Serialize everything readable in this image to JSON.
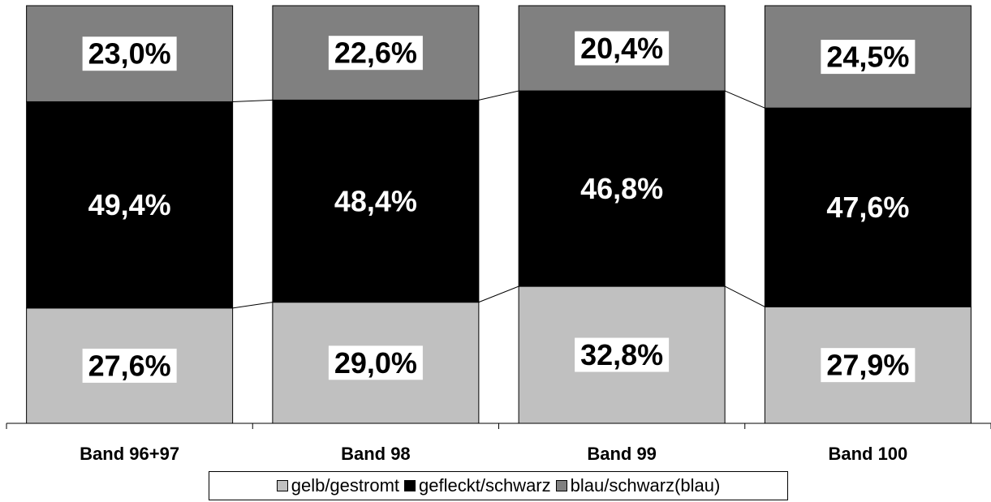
{
  "chart_data": {
    "type": "bar",
    "stacked": true,
    "percent_stacked": true,
    "categories": [
      "Band 96+97",
      "Band 98",
      "Band 99",
      "Band 100"
    ],
    "series": [
      {
        "name": "gelb/gestromt",
        "values": [
          27.6,
          29.0,
          32.8,
          27.9
        ],
        "labels": [
          "27,6%",
          "29,0%",
          "32,8%",
          "27,9%"
        ],
        "color": "#c0c0c0",
        "label_color": "#000000",
        "label_bg": "#ffffff"
      },
      {
        "name": "gefleckt/schwarz",
        "values": [
          49.4,
          48.4,
          46.8,
          47.6
        ],
        "labels": [
          "49,4%",
          "48,4%",
          "46,8%",
          "47,6%"
        ],
        "color": "#000000",
        "label_color": "#ffffff",
        "label_bg": ""
      },
      {
        "name": "blau/schwarz(blau)",
        "values": [
          23.0,
          22.6,
          20.4,
          24.5
        ],
        "labels": [
          "23,0%",
          "22,6%",
          "20,4%",
          "24,5%"
        ],
        "color": "#808080",
        "label_color": "#000000",
        "label_bg": "#ffffff"
      }
    ],
    "ylim": [
      0,
      100
    ],
    "series_lines": true,
    "grid": false,
    "legend_position": "bottom"
  }
}
